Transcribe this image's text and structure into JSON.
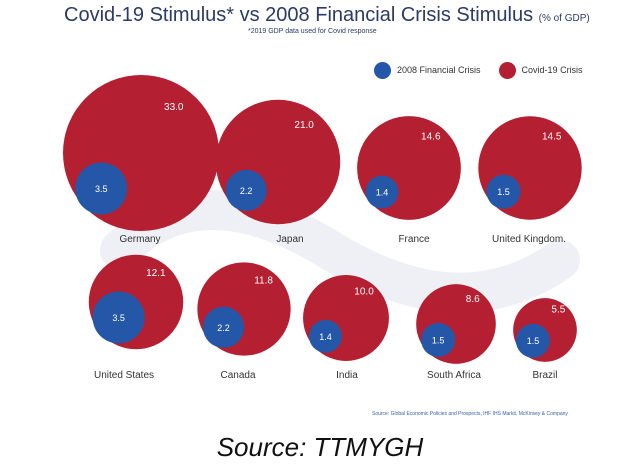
{
  "title": "Covid-19 Stimulus* vs 2008 Financial Crisis Stimulus",
  "title_unit": "(% of GDP)",
  "subtitle": "*2019 GDP data used for Covid response",
  "small_source": "Source: Global Economic Policies and Prospects, IHF IHS Markit, McKinsey & Company",
  "caption": "Source: TTMYGH",
  "colors": {
    "covid": "#b51f32",
    "crisis2008": "#2557a8",
    "background": "#ffffff"
  },
  "chart_data": {
    "type": "bubble",
    "legend_placement": "top-right",
    "categories": [
      "Germany",
      "Japan",
      "France",
      "United Kingdom.",
      "United States",
      "Canada",
      "India",
      "South Africa",
      "Brazil"
    ],
    "series": [
      {
        "name": "2008 Financial Crisis",
        "values": [
          3.5,
          2.2,
          1.4,
          1.5,
          3.5,
          2.2,
          1.4,
          1.5,
          1.5
        ]
      },
      {
        "name": "Covid-19 Crisis",
        "values": [
          33.0,
          21.0,
          14.6,
          14.5,
          12.1,
          11.8,
          10.0,
          8.6,
          5.5
        ]
      }
    ],
    "value_labels": {
      "covid": [
        "33.0",
        "21.0",
        "14.6",
        "14.5",
        "12.1",
        "11.8",
        "10.0",
        "8.6",
        "5.5"
      ],
      "crisis2008": [
        "3.5",
        "2.2",
        "1.4",
        "1.5",
        "3.5",
        "2.2",
        "1.4",
        "1.5",
        "1.5"
      ]
    }
  }
}
